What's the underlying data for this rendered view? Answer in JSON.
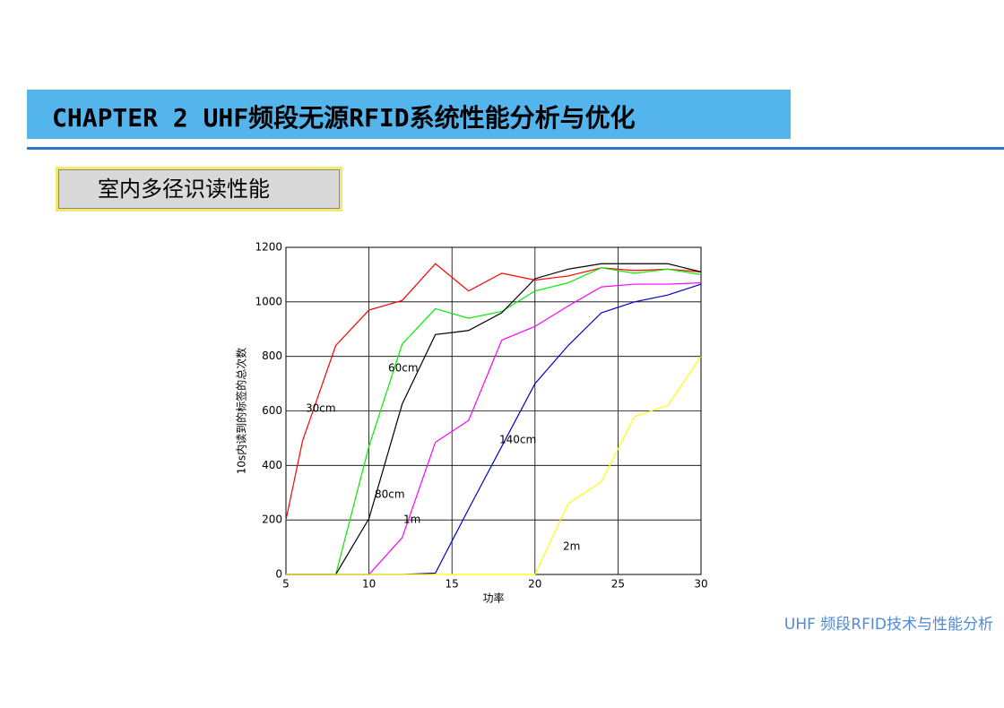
{
  "header": {
    "title": "CHAPTER 2 UHF频段无源RFID系统性能分析与优化"
  },
  "section": "室内多径识读性能",
  "footer": "UHF 频段RFID技术与性能分析",
  "chart_data": {
    "type": "line",
    "x_label": "功率",
    "y_label": "10s内读到的标签的总次数",
    "x": [
      5,
      6,
      8,
      10,
      12,
      14,
      16,
      18,
      20,
      22,
      24,
      26,
      28,
      30
    ],
    "series": [
      {
        "name": "30cm",
        "color": "#ff0000",
        "values": [
          200,
          490,
          840,
          970,
          1005,
          1140,
          1040,
          1105,
          1080,
          1095,
          1125,
          1115,
          1120,
          1110
        ]
      },
      {
        "name": "60cm",
        "color": "#00ee00",
        "values": [
          0,
          0,
          0,
          470,
          845,
          975,
          940,
          965,
          1040,
          1070,
          1125,
          1105,
          1120,
          1100
        ]
      },
      {
        "name": "80cm",
        "color": "#000000",
        "values": [
          0,
          0,
          0,
          205,
          625,
          880,
          895,
          960,
          1085,
          1120,
          1140,
          1140,
          1140,
          1110
        ]
      },
      {
        "name": "1m",
        "color": "#ff00ff",
        "values": [
          0,
          0,
          0,
          0,
          135,
          485,
          565,
          860,
          910,
          985,
          1055,
          1065,
          1065,
          1070
        ]
      },
      {
        "name": "140cm",
        "color": "#0000cc",
        "values": [
          0,
          0,
          0,
          0,
          0,
          5,
          240,
          470,
          700,
          840,
          960,
          1000,
          1025,
          1065
        ]
      },
      {
        "name": "2m",
        "color": "#ffff00",
        "values": [
          0,
          0,
          0,
          0,
          0,
          0,
          0,
          0,
          0,
          260,
          340,
          580,
          620,
          800
        ]
      }
    ],
    "xlim": [
      5,
      30
    ],
    "ylim": [
      0,
      1200
    ],
    "xticks": [
      5,
      10,
      15,
      20,
      25,
      30
    ],
    "yticks": [
      0,
      200,
      400,
      600,
      800,
      1000,
      1200
    ],
    "grid": true
  }
}
